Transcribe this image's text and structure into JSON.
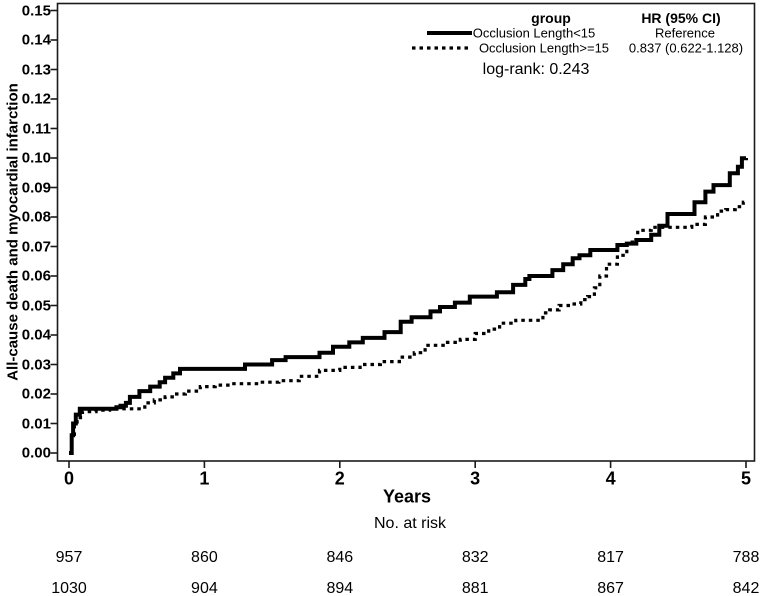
{
  "colors": {
    "line": "#000000",
    "axis": "#1a1a1a",
    "background": "#ffffff",
    "text": "#000000"
  },
  "chart_data": {
    "type": "line",
    "subtype": "kaplan-meier-cumulative-incidence-step",
    "title": "",
    "xlabel": "Years",
    "ylabel": "All-cause death and myocardial infarction",
    "grid": false,
    "x_axis": {
      "range": [
        0,
        5
      ],
      "ticks": [
        "0",
        "1",
        "2",
        "3",
        "4",
        "5"
      ]
    },
    "y_axis": {
      "range": [
        0.0,
        0.15
      ],
      "ticks": [
        "0.00",
        "0.01",
        "0.02",
        "0.03",
        "0.04",
        "0.05",
        "0.06",
        "0.07",
        "0.08",
        "0.09",
        "0.10",
        "0.11",
        "0.12",
        "0.13",
        "0.14",
        "0.15"
      ]
    },
    "legend": {
      "position": "top-right-inside",
      "group_header": "group",
      "hr_header": "HR (95% CI)",
      "entries": [
        {
          "name": "Occlusion Length<15",
          "style": "solid",
          "hr": "Reference"
        },
        {
          "name": "Occlusion Length>=15",
          "style": "dotted",
          "hr": "0.837 (0.622-1.128)"
        }
      ],
      "log_rank_label": "log-rank: 0.243"
    },
    "series": [
      {
        "name": "Occlusion Length<15",
        "style": "solid",
        "points": [
          [
            0,
            0
          ],
          [
            0.02,
            0.006
          ],
          [
            0.03,
            0.01
          ],
          [
            0.05,
            0.013
          ],
          [
            0.08,
            0.015
          ],
          [
            0.35,
            0.0155
          ],
          [
            0.38,
            0.016
          ],
          [
            0.42,
            0.017
          ],
          [
            0.45,
            0.019
          ],
          [
            0.52,
            0.021
          ],
          [
            0.6,
            0.0225
          ],
          [
            0.67,
            0.024
          ],
          [
            0.71,
            0.0255
          ],
          [
            0.77,
            0.027
          ],
          [
            0.82,
            0.0285
          ],
          [
            1.3,
            0.03
          ],
          [
            1.5,
            0.0315
          ],
          [
            1.6,
            0.0325
          ],
          [
            1.85,
            0.034
          ],
          [
            1.95,
            0.036
          ],
          [
            2.07,
            0.0375
          ],
          [
            2.17,
            0.039
          ],
          [
            2.33,
            0.041
          ],
          [
            2.45,
            0.0445
          ],
          [
            2.53,
            0.046
          ],
          [
            2.67,
            0.048
          ],
          [
            2.74,
            0.0495
          ],
          [
            2.85,
            0.051
          ],
          [
            2.96,
            0.053
          ],
          [
            3.16,
            0.0545
          ],
          [
            3.28,
            0.057
          ],
          [
            3.37,
            0.059
          ],
          [
            3.4,
            0.06
          ],
          [
            3.57,
            0.062
          ],
          [
            3.65,
            0.064
          ],
          [
            3.72,
            0.066
          ],
          [
            3.77,
            0.067
          ],
          [
            3.85,
            0.0688
          ],
          [
            4.05,
            0.0705
          ],
          [
            4.12,
            0.071
          ],
          [
            4.19,
            0.0722
          ],
          [
            4.3,
            0.074
          ],
          [
            4.36,
            0.077
          ],
          [
            4.42,
            0.081
          ],
          [
            4.62,
            0.085
          ],
          [
            4.7,
            0.0886
          ],
          [
            4.76,
            0.0908
          ],
          [
            4.88,
            0.0948
          ],
          [
            4.94,
            0.097
          ],
          [
            4.97,
            0.0999
          ],
          [
            5.0,
            0.1
          ]
        ]
      },
      {
        "name": "Occlusion Length>=15",
        "style": "dotted",
        "points": [
          [
            0,
            0
          ],
          [
            0.02,
            0.005
          ],
          [
            0.04,
            0.009
          ],
          [
            0.06,
            0.012
          ],
          [
            0.1,
            0.014
          ],
          [
            0.2,
            0.0145
          ],
          [
            0.3,
            0.015
          ],
          [
            0.56,
            0.017
          ],
          [
            0.63,
            0.018
          ],
          [
            0.71,
            0.019
          ],
          [
            0.78,
            0.02
          ],
          [
            0.86,
            0.021
          ],
          [
            0.97,
            0.0225
          ],
          [
            1.08,
            0.023
          ],
          [
            1.2,
            0.0235
          ],
          [
            1.4,
            0.024
          ],
          [
            1.55,
            0.0245
          ],
          [
            1.7,
            0.026
          ],
          [
            1.85,
            0.028
          ],
          [
            2.0,
            0.029
          ],
          [
            2.15,
            0.03
          ],
          [
            2.3,
            0.031
          ],
          [
            2.44,
            0.0325
          ],
          [
            2.55,
            0.034
          ],
          [
            2.63,
            0.0365
          ],
          [
            2.78,
            0.0375
          ],
          [
            2.89,
            0.0385
          ],
          [
            3.0,
            0.0405
          ],
          [
            3.1,
            0.042
          ],
          [
            3.18,
            0.044
          ],
          [
            3.3,
            0.045
          ],
          [
            3.5,
            0.0475
          ],
          [
            3.55,
            0.0485
          ],
          [
            3.62,
            0.05
          ],
          [
            3.7,
            0.0505
          ],
          [
            3.78,
            0.052
          ],
          [
            3.83,
            0.053
          ],
          [
            3.88,
            0.056
          ],
          [
            3.92,
            0.06
          ],
          [
            3.97,
            0.064
          ],
          [
            4.05,
            0.067
          ],
          [
            4.12,
            0.0715
          ],
          [
            4.2,
            0.0755
          ],
          [
            4.3,
            0.0765
          ],
          [
            4.6,
            0.0775
          ],
          [
            4.7,
            0.08
          ],
          [
            4.79,
            0.082
          ],
          [
            4.85,
            0.0825
          ],
          [
            4.92,
            0.0835
          ],
          [
            4.98,
            0.085
          ],
          [
            5.0,
            0.085
          ]
        ]
      }
    ],
    "no_at_risk": {
      "label": "No. at risk",
      "times": [
        0,
        1,
        2,
        3,
        4,
        5
      ],
      "groups": [
        {
          "name": "Occlusion Length<15",
          "counts": [
            "957",
            "860",
            "846",
            "832",
            "817",
            "788"
          ]
        },
        {
          "name": "Occlusion Length>=15",
          "counts": [
            "1030",
            "904",
            "894",
            "881",
            "867",
            "842"
          ]
        }
      ]
    }
  }
}
